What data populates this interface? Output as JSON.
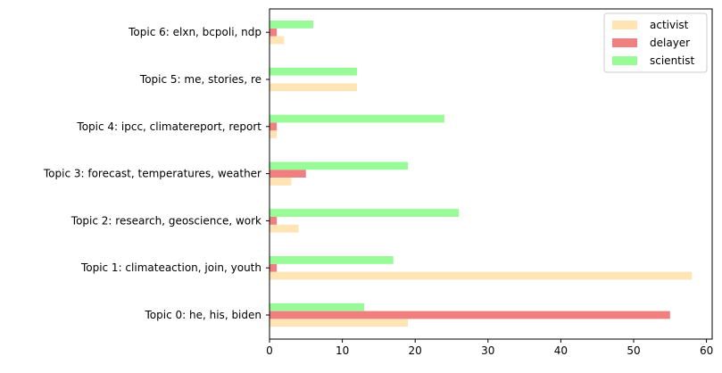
{
  "chart_data": {
    "type": "bar",
    "orientation": "horizontal",
    "categories": [
      "Topic 0: he, his, biden",
      "Topic 1: climateaction, join, youth",
      "Topic 2: research, geoscience, work",
      "Topic 3: forecast, temperatures, weather",
      "Topic 4: ipcc, climatereport, report",
      "Topic 5: me, stories, re",
      "Topic 6: elxn, bcpoli, ndp"
    ],
    "series": [
      {
        "name": "activist",
        "color": "#FFE4B5",
        "values": [
          19,
          58,
          4,
          3,
          1,
          12,
          2
        ]
      },
      {
        "name": "delayer",
        "color": "#F08080",
        "values": [
          55,
          1,
          1,
          5,
          1,
          0,
          1
        ]
      },
      {
        "name": "scientist",
        "color": "#98FB98",
        "values": [
          13,
          17,
          26,
          19,
          24,
          12,
          6
        ]
      }
    ],
    "title": "",
    "xlabel": "",
    "ylabel": "",
    "xlim": [
      0,
      61
    ],
    "xticks": [
      0,
      10,
      20,
      30,
      40,
      50,
      60
    ],
    "grid": false,
    "legend_position": "top-right"
  }
}
